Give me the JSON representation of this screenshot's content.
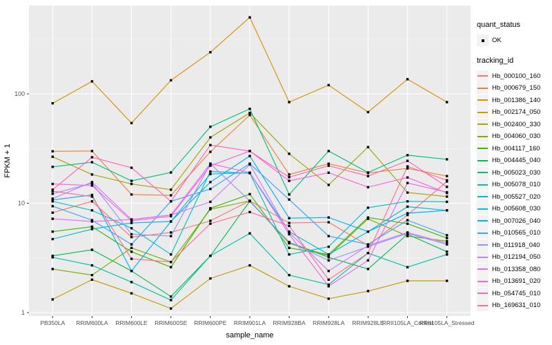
{
  "colors": {
    "page_bg": "#FFFFFF",
    "panel_bg": "#EBEBEB",
    "grid_major": "#FFFFFF",
    "grid_minor": "#F7F7F7",
    "tick_text": "#4D4D4D",
    "axis_title_text": "#000000",
    "marker": "#000000",
    "legend_key_bg": "#F2F2F2"
  },
  "chart_data": {
    "type": "line",
    "title": "",
    "xlabel": "sample_name",
    "ylabel": "FPKM + 1",
    "y_scale": "log10",
    "y_ticks": [
      1,
      10,
      100
    ],
    "y_minor_ticks": [
      3.162,
      31.62,
      316.2
    ],
    "ylim": [
      1,
      600
    ],
    "grid": "white major+minor on grey panel",
    "legend_position": "right",
    "marker_shape": "small black square",
    "categories": [
      "PB350LA",
      "RRIM600LA",
      "RRIM600LE",
      "RRIM600SE",
      "RRIM600PE",
      "RRIM901LA",
      "RRIM928BA",
      "RRIM928LA",
      "RRIM928LE",
      "RRII105LA_Control",
      "RRII105LA_Stressed"
    ],
    "legend": {
      "quant_status_title": "quant_status",
      "quant_status_items": [
        "OK"
      ],
      "tracking_id_title": "tracking_id"
    },
    "series": [
      {
        "name": "Hb_000100_160",
        "color": "#F8766D",
        "values": [
          8.2,
          10.4,
          4.9,
          5.4,
          6.9,
          10.5,
          6.6,
          6.7,
          4.1,
          7.8,
          15.8
        ]
      },
      {
        "name": "Hb_000679_150",
        "color": "#EA8331",
        "values": [
          29.8,
          30,
          12,
          11.8,
          29.5,
          64,
          18.3,
          23,
          18.9,
          20.8,
          17.7
        ]
      },
      {
        "name": "Hb_001386_140",
        "color": "#D89000",
        "values": [
          82,
          130,
          54,
          133,
          240,
          500,
          84,
          120,
          68,
          136,
          84
        ]
      },
      {
        "name": "Hb_002174_050",
        "color": "#C09B00",
        "values": [
          1.32,
          2.0,
          1.5,
          1.09,
          2.05,
          2.7,
          1.74,
          1.34,
          1.57,
          1.95,
          1.95
        ]
      },
      {
        "name": "Hb_002400_330",
        "color": "#A3A500",
        "values": [
          26.6,
          18.3,
          15,
          13.3,
          40,
          67,
          28.3,
          14.7,
          32.6,
          12.5,
          11.5
        ]
      },
      {
        "name": "Hb_004060_030",
        "color": "#7CAE00",
        "values": [
          2.5,
          2.2,
          3.9,
          2.9,
          8.8,
          10.5,
          4.3,
          3.3,
          7.2,
          5.0,
          4.5
        ]
      },
      {
        "name": "Hb_004117_160",
        "color": "#39B600",
        "values": [
          5.5,
          6.1,
          3.6,
          2.6,
          9.0,
          12.1,
          3.9,
          3.4,
          7.4,
          6.5,
          4.8
        ]
      },
      {
        "name": "Hb_004445_040",
        "color": "#00BB4E",
        "values": [
          3.3,
          3.75,
          2.4,
          1.4,
          3.3,
          10.4,
          4.4,
          3.2,
          2.5,
          5.2,
          3.6
        ]
      },
      {
        "name": "Hb_005023_030",
        "color": "#00BF7D",
        "values": [
          21.5,
          23.7,
          16,
          19.1,
          50,
          73,
          12,
          30,
          19.1,
          27.5,
          25.2
        ]
      },
      {
        "name": "Hb_005078_010",
        "color": "#00C1A3",
        "values": [
          3.2,
          2.7,
          1.9,
          1.3,
          3.3,
          5.3,
          2.2,
          1.8,
          3.5,
          2.6,
          3.4
        ]
      },
      {
        "name": "Hb_005527_020",
        "color": "#00BFC4",
        "values": [
          10.4,
          8.6,
          5.9,
          3.4,
          19.5,
          18.8,
          3.4,
          4.0,
          9.1,
          10.4,
          10.3
        ]
      },
      {
        "name": "Hb_005608_030",
        "color": "#00BAE0",
        "values": [
          4.7,
          5.8,
          6.6,
          6.8,
          18.5,
          19,
          5.5,
          3.4,
          5.5,
          9.3,
          8.6
        ]
      },
      {
        "name": "Hb_007026_040",
        "color": "#00B0F6",
        "values": [
          10.7,
          11.9,
          2.4,
          6.8,
          15.6,
          27,
          7.3,
          7.4,
          5.5,
          8.1,
          8.6
        ]
      },
      {
        "name": "Hb_010565_010",
        "color": "#35A2FF",
        "values": [
          9.4,
          7.0,
          4.2,
          10.4,
          13.5,
          23,
          10.8,
          5.0,
          4.2,
          7.0,
          5.1
        ]
      },
      {
        "name": "Hb_011918_040",
        "color": "#9590FF",
        "values": [
          12.2,
          15.2,
          5.2,
          5.0,
          23,
          10.5,
          4.4,
          3.0,
          4.0,
          5.3,
          4.2
        ]
      },
      {
        "name": "Hb_012194_050",
        "color": "#C77CFF",
        "values": [
          11.0,
          15.6,
          7.1,
          7.8,
          10.3,
          22.6,
          5.4,
          2.4,
          4.1,
          5.4,
          4.3
        ]
      },
      {
        "name": "Hb_013358_080",
        "color": "#E76BF3",
        "values": [
          7.2,
          6.8,
          7.1,
          7.8,
          23,
          19,
          5.2,
          1.74,
          3.0,
          15.3,
          12.6
        ]
      },
      {
        "name": "Hb_013691_020",
        "color": "#FA62DB",
        "values": [
          15.0,
          14.5,
          6.9,
          7.6,
          22,
          30,
          16.0,
          19.0,
          14.0,
          17.2,
          12.4
        ]
      },
      {
        "name": "Hb_054745_010",
        "color": "#FF62BC",
        "values": [
          13.3,
          26.3,
          21.1,
          10.4,
          34,
          30,
          17.3,
          22.0,
          17.7,
          24.4,
          14.1
        ]
      },
      {
        "name": "Hb_169631_010",
        "color": "#FF6A98",
        "values": [
          12.9,
          11.5,
          3.1,
          2.9,
          6.5,
          8.3,
          6.2,
          2.0,
          3.5,
          21.7,
          16.2
        ]
      }
    ]
  }
}
